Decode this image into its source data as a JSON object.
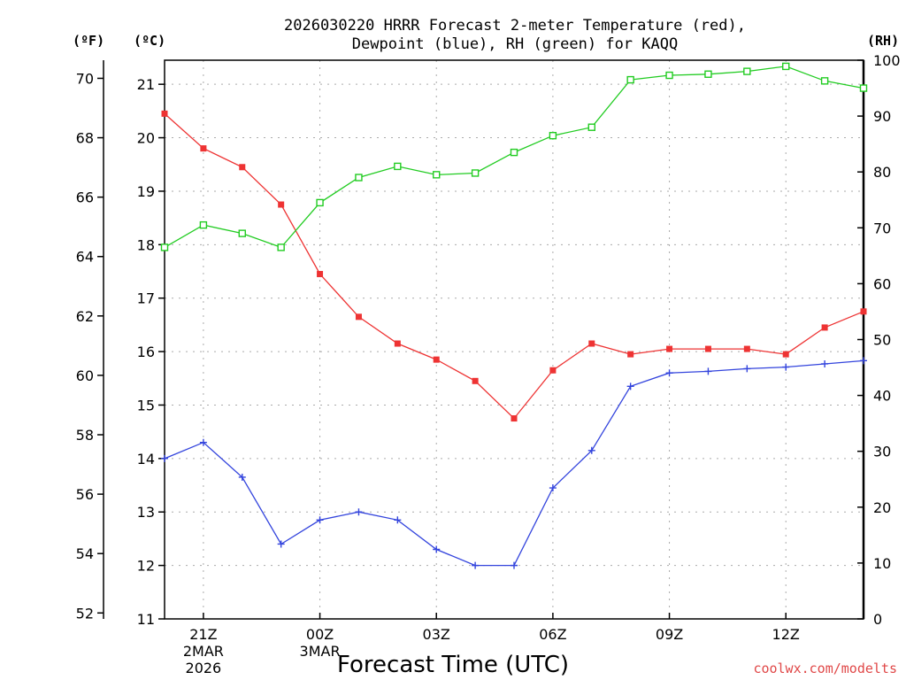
{
  "chart_data": {
    "type": "line",
    "title_line1": "2026030220 HRRR Forecast 2-meter Temperature (red),",
    "title_line2": "Dewpoint (blue), RH (green) for KAQQ",
    "xlabel": "Forecast Time (UTC)",
    "credit": "coolwx.com/modelts",
    "units": {
      "fahrenheit": "(ºF)",
      "celsius": "(ºC)",
      "rh": "(RH)"
    },
    "grid": true,
    "hours": [
      0,
      1,
      2,
      3,
      4,
      5,
      6,
      7,
      8,
      9,
      10,
      11,
      12,
      13,
      14,
      15,
      16,
      17,
      18
    ],
    "x_ticks": [
      {
        "hour": 1,
        "label": "21Z",
        "sub1": "2MAR",
        "sub2": "2026"
      },
      {
        "hour": 4,
        "label": "00Z",
        "sub1": "3MAR",
        "sub2": ""
      },
      {
        "hour": 7,
        "label": "03Z",
        "sub1": "",
        "sub2": ""
      },
      {
        "hour": 10,
        "label": "06Z",
        "sub1": "",
        "sub2": ""
      },
      {
        "hour": 13,
        "label": "09Z",
        "sub1": "",
        "sub2": ""
      },
      {
        "hour": 16,
        "label": "12Z",
        "sub1": "",
        "sub2": ""
      }
    ],
    "celsius_ticks": [
      11,
      12,
      13,
      14,
      15,
      16,
      17,
      18,
      19,
      20,
      21
    ],
    "fahrenheit_ticks": [
      52,
      54,
      56,
      58,
      60,
      62,
      64,
      66,
      68,
      70
    ],
    "rh_ticks": [
      0,
      10,
      20,
      30,
      40,
      50,
      60,
      70,
      80,
      90,
      100
    ],
    "ylim_celsius": [
      11,
      21.45
    ],
    "ylim_rh": [
      0,
      100
    ],
    "series": [
      {
        "name": "Temperature",
        "color": "#ee3333",
        "marker": "square-filled",
        "axis": "celsius",
        "values": [
          20.45,
          19.8,
          19.45,
          18.75,
          17.45,
          16.65,
          16.15,
          15.85,
          15.45,
          14.75,
          15.65,
          16.15,
          15.95,
          16.05,
          16.05,
          16.05,
          15.95,
          16.45,
          16.75
        ]
      },
      {
        "name": "Dewpoint",
        "color": "#3344dd",
        "marker": "plus",
        "axis": "celsius",
        "values": [
          14.0,
          14.3,
          13.65,
          12.4,
          12.85,
          13.0,
          12.85,
          12.3,
          12.0,
          12.0,
          13.45,
          14.15,
          15.35,
          15.6,
          15.63,
          15.68,
          15.71,
          15.77,
          15.83
        ]
      },
      {
        "name": "RH",
        "color": "#22cc22",
        "marker": "square-open",
        "axis": "rh",
        "values": [
          66.5,
          70.5,
          69.0,
          66.5,
          74.5,
          79.0,
          81.0,
          79.5,
          79.8,
          83.5,
          86.5,
          88.0,
          96.5,
          97.3,
          97.5,
          98.0,
          98.9,
          96.3,
          95.0
        ]
      }
    ]
  }
}
